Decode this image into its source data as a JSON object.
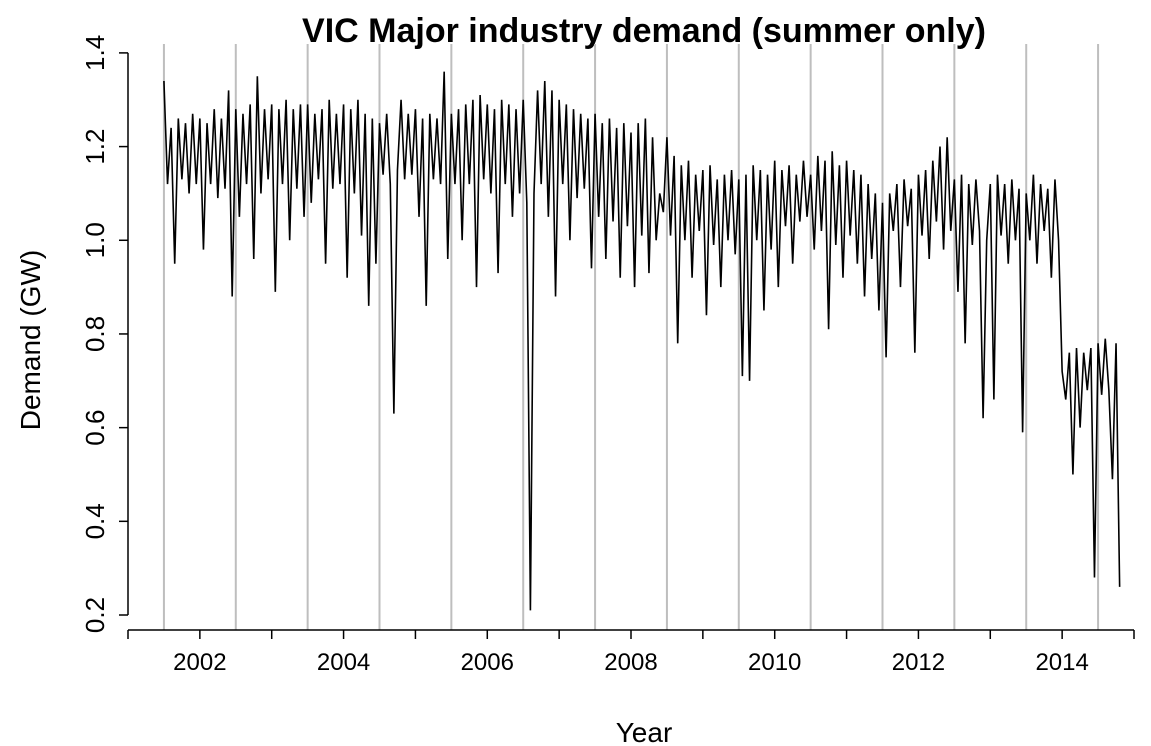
{
  "chart_data": {
    "type": "line",
    "title": "VIC Major industry demand (summer only)",
    "xlabel": "Year",
    "ylabel": "Demand (GW)",
    "xlim": [
      2001,
      2015
    ],
    "ylim": [
      0.168,
      1.419
    ],
    "xticks": [
      2002,
      2004,
      2006,
      2008,
      2010,
      2012,
      2014
    ],
    "xminor_ticks": [
      2001,
      2003,
      2005,
      2007,
      2009,
      2011,
      2013,
      2015
    ],
    "yticks": [
      0.2,
      0.4,
      0.6,
      0.8,
      {
        "value": 1,
        "label": "1.0"
      },
      1.2,
      1.4
    ],
    "vlines": [
      2001.5,
      2002.5,
      2003.5,
      2004.5,
      2005.5,
      2006.5,
      2007.5,
      2008.5,
      2009.5,
      2010.5,
      2011.5,
      2012.5,
      2013.5,
      2014.5
    ],
    "vline_color": "#bebebe",
    "series": [
      {
        "color": "#000000",
        "x": [
          2001.5,
          2001.55,
          2001.6,
          2001.65,
          2001.7,
          2001.75,
          2001.8,
          2001.85,
          2001.9,
          2001.95,
          2002,
          2002.05,
          2002.1,
          2002.15,
          2002.2,
          2002.25,
          2002.3,
          2002.35,
          2002.4,
          2002.45,
          2002.5,
          2002.55,
          2002.6,
          2002.65,
          2002.7,
          2002.75,
          2002.8,
          2002.85,
          2002.9,
          2002.95,
          2003,
          2003.05,
          2003.1,
          2003.15,
          2003.2,
          2003.25,
          2003.3,
          2003.35,
          2003.4,
          2003.45,
          2003.5,
          2003.55,
          2003.6,
          2003.65,
          2003.7,
          2003.75,
          2003.8,
          2003.85,
          2003.9,
          2003.95,
          2004,
          2004.05,
          2004.1,
          2004.15,
          2004.2,
          2004.25,
          2004.3,
          2004.35,
          2004.4,
          2004.45,
          2004.5,
          2004.55,
          2004.6,
          2004.65,
          2004.7,
          2004.75,
          2004.8,
          2004.85,
          2004.9,
          2004.95,
          2005,
          2005.05,
          2005.1,
          2005.15,
          2005.2,
          2005.25,
          2005.3,
          2005.35,
          2005.4,
          2005.45,
          2005.5,
          2005.55,
          2005.6,
          2005.65,
          2005.7,
          2005.75,
          2005.8,
          2005.85,
          2005.9,
          2005.95,
          2006,
          2006.05,
          2006.1,
          2006.15,
          2006.2,
          2006.25,
          2006.3,
          2006.35,
          2006.4,
          2006.45,
          2006.5,
          2006.55,
          2006.6,
          2006.65,
          2006.7,
          2006.75,
          2006.8,
          2006.85,
          2006.9,
          2006.95,
          2007,
          2007.05,
          2007.1,
          2007.15,
          2007.2,
          2007.25,
          2007.3,
          2007.35,
          2007.4,
          2007.45,
          2007.5,
          2007.55,
          2007.6,
          2007.65,
          2007.7,
          2007.75,
          2007.8,
          2007.85,
          2007.9,
          2007.95,
          2008,
          2008.05,
          2008.1,
          2008.15,
          2008.2,
          2008.25,
          2008.3,
          2008.35,
          2008.4,
          2008.45,
          2008.5,
          2008.55,
          2008.6,
          2008.65,
          2008.7,
          2008.75,
          2008.8,
          2008.85,
          2008.9,
          2008.95,
          2009,
          2009.05,
          2009.1,
          2009.15,
          2009.2,
          2009.25,
          2009.3,
          2009.35,
          2009.4,
          2009.45,
          2009.5,
          2009.55,
          2009.6,
          2009.65,
          2009.7,
          2009.75,
          2009.8,
          2009.85,
          2009.9,
          2009.95,
          2010,
          2010.05,
          2010.1,
          2010.15,
          2010.2,
          2010.25,
          2010.3,
          2010.35,
          2010.4,
          2010.45,
          2010.5,
          2010.55,
          2010.6,
          2010.65,
          2010.7,
          2010.75,
          2010.8,
          2010.85,
          2010.9,
          2010.95,
          2011,
          2011.05,
          2011.1,
          2011.15,
          2011.2,
          2011.25,
          2011.3,
          2011.35,
          2011.4,
          2011.45,
          2011.5,
          2011.55,
          2011.6,
          2011.65,
          2011.7,
          2011.75,
          2011.8,
          2011.85,
          2011.9,
          2011.95,
          2012,
          2012.05,
          2012.1,
          2012.15,
          2012.2,
          2012.25,
          2012.3,
          2012.35,
          2012.4,
          2012.45,
          2012.5,
          2012.55,
          2012.6,
          2012.65,
          2012.7,
          2012.75,
          2012.8,
          2012.85,
          2012.9,
          2012.95,
          2013,
          2013.05,
          2013.1,
          2013.15,
          2013.2,
          2013.25,
          2013.3,
          2013.35,
          2013.4,
          2013.45,
          2013.5,
          2013.55,
          2013.6,
          2013.65,
          2013.7,
          2013.75,
          2013.8,
          2013.85,
          2013.9,
          2013.95,
          2014,
          2014.05,
          2014.1,
          2014.15,
          2014.2,
          2014.25,
          2014.3,
          2014.35,
          2014.4,
          2014.45,
          2014.5,
          2014.55,
          2014.6,
          2014.65,
          2014.7,
          2014.75,
          2014.8
        ],
        "values": [
          1.34,
          1.12,
          1.24,
          0.95,
          1.26,
          1.13,
          1.25,
          1.1,
          1.27,
          1.12,
          1.26,
          0.98,
          1.25,
          1.12,
          1.28,
          1.09,
          1.26,
          1.11,
          1.32,
          0.88,
          1.28,
          1.05,
          1.27,
          1.12,
          1.29,
          0.96,
          1.35,
          1.1,
          1.28,
          1.13,
          1.29,
          0.89,
          1.28,
          1.12,
          1.3,
          1.0,
          1.28,
          1.11,
          1.29,
          1.05,
          1.29,
          1.08,
          1.27,
          1.13,
          1.28,
          0.95,
          1.3,
          1.11,
          1.27,
          1.12,
          1.29,
          0.92,
          1.28,
          1.1,
          1.3,
          1.01,
          1.27,
          0.86,
          1.26,
          0.95,
          1.25,
          1.14,
          1.27,
          1.12,
          0.63,
          1.15,
          1.3,
          1.13,
          1.27,
          1.14,
          1.28,
          1.05,
          1.26,
          0.86,
          1.27,
          1.13,
          1.26,
          1.12,
          1.36,
          0.96,
          1.27,
          1.12,
          1.28,
          1.0,
          1.29,
          1.12,
          1.3,
          0.9,
          1.31,
          1.13,
          1.29,
          1.1,
          1.28,
          0.93,
          1.3,
          1.12,
          1.29,
          1.05,
          1.28,
          1.1,
          1.3,
          1.08,
          0.21,
          1.1,
          1.32,
          1.12,
          1.34,
          1.05,
          1.32,
          0.88,
          1.3,
          1.12,
          1.29,
          1.0,
          1.28,
          1.09,
          1.27,
          1.11,
          1.26,
          0.94,
          1.27,
          1.05,
          1.25,
          0.96,
          1.26,
          1.04,
          1.24,
          0.92,
          1.25,
          1.03,
          1.23,
          0.9,
          1.25,
          1.01,
          1.26,
          0.93,
          1.22,
          1.0,
          1.1,
          1.06,
          1.22,
          1.01,
          1.18,
          0.78,
          1.16,
          1.0,
          1.17,
          0.92,
          1.14,
          1.02,
          1.15,
          0.84,
          1.16,
          0.99,
          1.13,
          0.9,
          1.14,
          1.0,
          1.15,
          0.97,
          1.13,
          0.71,
          1.14,
          0.7,
          1.16,
          1.0,
          1.15,
          0.85,
          1.14,
          0.98,
          1.17,
          0.9,
          1.15,
          1.03,
          1.16,
          0.95,
          1.14,
          1.04,
          1.17,
          1.05,
          1.14,
          0.98,
          1.18,
          1.02,
          1.17,
          0.81,
          1.19,
          0.99,
          1.16,
          0.92,
          1.17,
          1.01,
          1.15,
          0.95,
          1.14,
          0.88,
          1.12,
          0.96,
          1.1,
          0.85,
          1.08,
          0.75,
          1.1,
          1.02,
          1.12,
          0.9,
          1.13,
          1.03,
          1.11,
          0.76,
          1.14,
          1.01,
          1.15,
          0.96,
          1.17,
          1.04,
          1.2,
          0.98,
          1.22,
          1.02,
          1.13,
          0.89,
          1.14,
          0.78,
          1.12,
          0.99,
          1.13,
          1.02,
          0.62,
          1.0,
          1.12,
          0.66,
          1.14,
          1.01,
          1.12,
          0.95,
          1.13,
          1.0,
          1.11,
          0.59,
          1.1,
          1.0,
          1.14,
          0.95,
          1.12,
          1.02,
          1.11,
          0.92,
          1.13,
          1.0,
          0.72,
          0.66,
          0.76,
          0.5,
          0.77,
          0.6,
          0.76,
          0.68,
          0.77,
          0.28,
          0.78,
          0.67,
          0.79,
          0.68,
          0.49,
          0.78,
          0.26
        ]
      }
    ]
  }
}
